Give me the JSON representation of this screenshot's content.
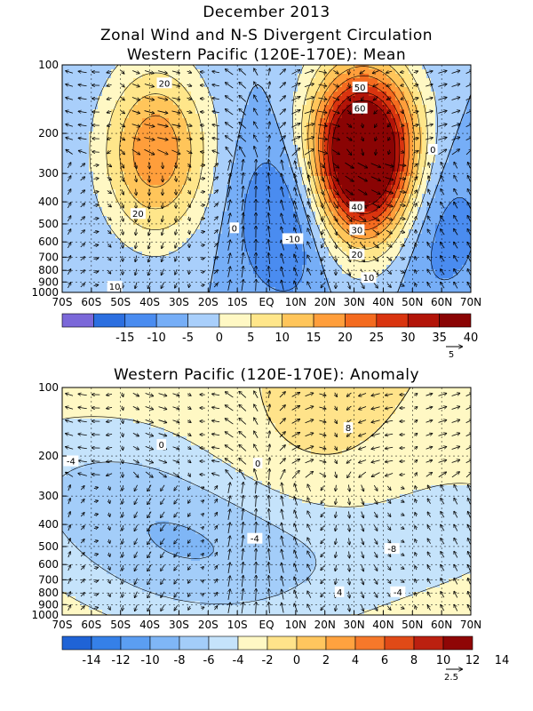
{
  "header": {
    "line1": "December 2013",
    "line2": "Zonal Wind and N-S Divergent Circulation",
    "line3": "Western Pacific (120E-170E): Mean"
  },
  "panel2_title": "Western Pacific (120E-170E): Anomaly",
  "colors": {
    "mean": [
      "#7b68d9",
      "#2c6fe0",
      "#4a8cf0",
      "#76aef7",
      "#a9cffb",
      "#fff8c4",
      "#ffe68a",
      "#ffc55a",
      "#ff9e3b",
      "#f46b1f",
      "#d9340f",
      "#b21408",
      "#8a0404"
    ],
    "anom": [
      "#1f63d6",
      "#3580e8",
      "#5b9ef2",
      "#7fb6f6",
      "#a3cdf9",
      "#c5e3fb",
      "#fff8c4",
      "#ffe38a",
      "#ffc65e",
      "#ffa23f",
      "#f6782a",
      "#e04a17",
      "#bb2010",
      "#8f0606"
    ]
  },
  "chart_data": [
    {
      "type": "heatmap",
      "title": "Western Pacific (120E-170E): Mean",
      "x_ticks": [
        "70S",
        "60S",
        "50S",
        "40S",
        "30S",
        "20S",
        "10S",
        "EQ",
        "10N",
        "20N",
        "30N",
        "40N",
        "50N",
        "60N",
        "70N"
      ],
      "y_ticks": [
        "100",
        "200",
        "300",
        "400",
        "500",
        "600",
        "700",
        "800",
        "900",
        "1000"
      ],
      "xlim": [
        -70,
        70
      ],
      "ylim": [
        1000,
        100
      ],
      "yscale": "log",
      "colorbar_labels": [
        "-15",
        "-10",
        "-5",
        "0",
        "5",
        "10",
        "15",
        "20",
        "25",
        "30",
        "35",
        "40"
      ],
      "contour_labels": [
        {
          "text": "20",
          "lat": -35,
          "p": 120
        },
        {
          "text": "20",
          "lat": -44,
          "p": 450
        },
        {
          "text": "10",
          "lat": -52,
          "p": 940
        },
        {
          "text": "0",
          "lat": -11,
          "p": 520
        },
        {
          "text": "-10",
          "lat": 9,
          "p": 580
        },
        {
          "text": "50",
          "lat": 32,
          "p": 125
        },
        {
          "text": "60",
          "lat": 32,
          "p": 155
        },
        {
          "text": "40",
          "lat": 31,
          "p": 420
        },
        {
          "text": "30",
          "lat": 31,
          "p": 530
        },
        {
          "text": "20",
          "lat": 31,
          "p": 680
        },
        {
          "text": "10",
          "lat": 35,
          "p": 860
        },
        {
          "text": "0",
          "lat": 57,
          "p": 235
        }
      ],
      "vector_reference": "5",
      "fields": {
        "center_lat": [
          -38,
          8,
          33,
          58
        ],
        "center_p": [
          240,
          450,
          250,
          500
        ],
        "peak": [
          24,
          -13,
          62,
          -9
        ]
      }
    },
    {
      "type": "heatmap",
      "title": "Western Pacific (120E-170E): Anomaly",
      "x_ticks": [
        "70S",
        "60S",
        "50S",
        "40S",
        "30S",
        "20S",
        "10S",
        "EQ",
        "10N",
        "20N",
        "30N",
        "40N",
        "50N",
        "60N",
        "70N"
      ],
      "y_ticks": [
        "100",
        "200",
        "300",
        "400",
        "500",
        "600",
        "700",
        "800",
        "900",
        "1000"
      ],
      "xlim": [
        -70,
        70
      ],
      "ylim": [
        1000,
        100
      ],
      "yscale": "log",
      "colorbar_labels": [
        "-14",
        "-12",
        "-10",
        "-8",
        "-6",
        "-4",
        "-2",
        "0",
        "2",
        "4",
        "6",
        "8",
        "10",
        "12",
        "14"
      ],
      "contour_labels": [
        {
          "text": "-4",
          "lat": -67,
          "p": 210
        },
        {
          "text": "0",
          "lat": -36,
          "p": 178
        },
        {
          "text": "0",
          "lat": -3,
          "p": 215
        },
        {
          "text": "-4",
          "lat": -4,
          "p": 460
        },
        {
          "text": "8",
          "lat": 28,
          "p": 150
        },
        {
          "text": "4",
          "lat": 25,
          "p": 790
        },
        {
          "text": "-8",
          "lat": 43,
          "p": 510
        },
        {
          "text": "-4",
          "lat": 45,
          "p": 790
        }
      ],
      "vector_reference": "2.5",
      "fields": {
        "center_lat": [
          28,
          42,
          -28,
          -5,
          -62
        ],
        "center_p": [
          330,
          350,
          450,
          550,
          250
        ],
        "peak": [
          9,
          -9,
          -3,
          -4,
          -3
        ]
      }
    }
  ]
}
